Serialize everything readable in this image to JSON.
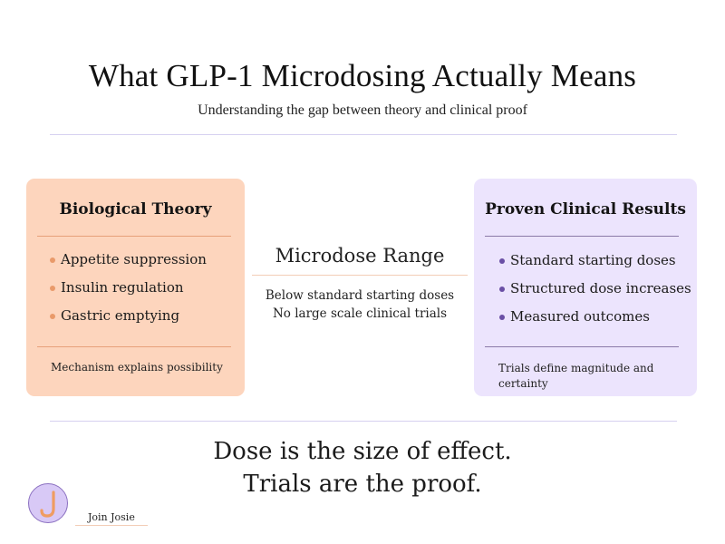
{
  "header": {
    "title": "What GLP-1 Microdosing Actually Means",
    "subtitle": "Understanding the gap between theory and clinical proof"
  },
  "theory_card": {
    "title": "Biological Theory",
    "items": [
      "Appetite suppression",
      "Insulin regulation",
      "Gastric emptying"
    ],
    "footer": "Mechanism explains possibility",
    "color": "#fdd5bd",
    "bullet_color": "#e99a6a"
  },
  "middle": {
    "title": "Microdose Range",
    "lines": [
      "Below standard starting doses",
      "No large scale clinical trials"
    ]
  },
  "results_card": {
    "title": "Proven Clinical Results",
    "items": [
      "Standard starting doses",
      "Structured dose increases",
      "Measured outcomes"
    ],
    "footer": "Trials define magnitude and certainty",
    "color": "#ece4fd",
    "bullet_color": "#6a4fa5"
  },
  "closing": {
    "line1": "Dose is the size of effect.",
    "line2": "Trials are the proof."
  },
  "brand": {
    "logo_icon": "letter-j-logo",
    "name": "Join Josie"
  }
}
